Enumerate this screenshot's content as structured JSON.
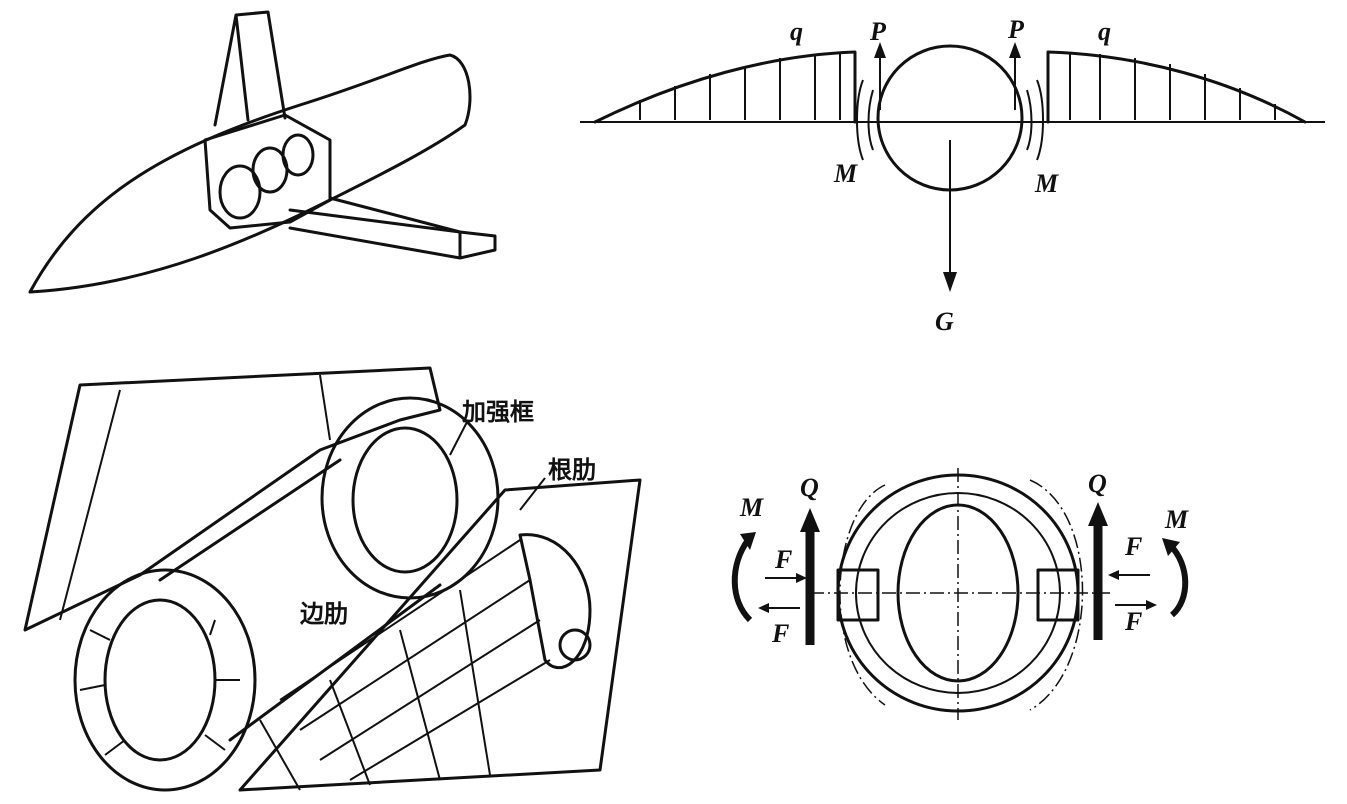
{
  "panel_tl": {},
  "panel_tr": {
    "labels": {
      "q_left": "q",
      "q_right": "q",
      "p_left": "P",
      "p_right": "P",
      "m_left": "M",
      "m_right": "M",
      "g": "G"
    }
  },
  "panel_bl": {
    "labels": {
      "frame": "加强框",
      "root_rib": "根肋",
      "side_rib": "边肋"
    }
  },
  "panel_br": {
    "labels": {
      "m_left": "M",
      "q_left": "Q",
      "f_left_top": "F",
      "f_left_bottom": "F",
      "q_right": "Q",
      "m_right": "M",
      "f_right_top": "F",
      "f_right_bottom": "F"
    }
  }
}
